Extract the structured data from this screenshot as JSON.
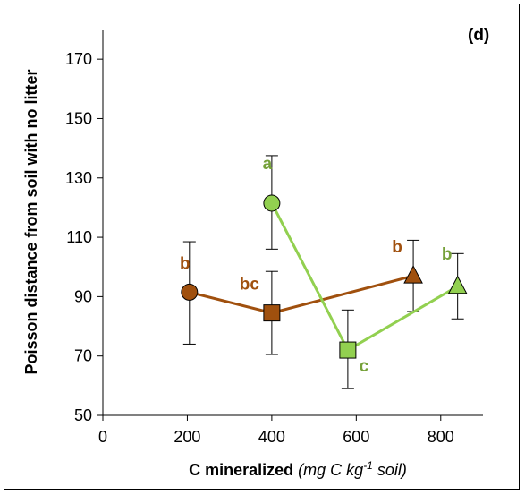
{
  "chart_data": {
    "type": "scatter",
    "panel_label": "(d)",
    "xlabel": {
      "main": "C mineralized ",
      "unit_a": "(mg C kg",
      "unit_sup": "-1",
      "unit_b": " soil)"
    },
    "ylabel": "Poisson distance from soil with no litter",
    "xlim": [
      0,
      900
    ],
    "ylim": [
      50,
      180
    ],
    "xticks": [
      "0",
      "200",
      "400",
      "600",
      "800"
    ],
    "xtick_values": [
      0,
      200,
      400,
      600,
      800
    ],
    "yticks": [
      "50",
      "70",
      "90",
      "110",
      "130",
      "150",
      "170"
    ],
    "ytick_values": [
      50,
      70,
      90,
      110,
      130,
      150,
      170
    ],
    "series": [
      {
        "color": "#A0500E",
        "points": [
          {
            "x": 205,
            "y": 91.5,
            "err_low": 74,
            "err_high": 108.5,
            "marker": "circle",
            "label": "b"
          },
          {
            "x": 400,
            "y": 84.5,
            "err_low": 70.5,
            "err_high": 98.5,
            "marker": "square",
            "label": "bc"
          },
          {
            "x": 735,
            "y": 97,
            "err_low": 85,
            "err_high": 109,
            "marker": "triangle",
            "label": "b"
          }
        ]
      },
      {
        "color": "#92D050",
        "label_color": "#76A13A",
        "points": [
          {
            "x": 400,
            "y": 121.5,
            "err_low": 106,
            "err_high": 137.5,
            "marker": "circle",
            "label": "a"
          },
          {
            "x": 580,
            "y": 72,
            "err_low": 59,
            "err_high": 85.5,
            "marker": "square",
            "label": "c"
          },
          {
            "x": 840,
            "y": 93.5,
            "err_low": 82.5,
            "err_high": 104.5,
            "marker": "triangle",
            "label": "b"
          }
        ]
      }
    ]
  }
}
